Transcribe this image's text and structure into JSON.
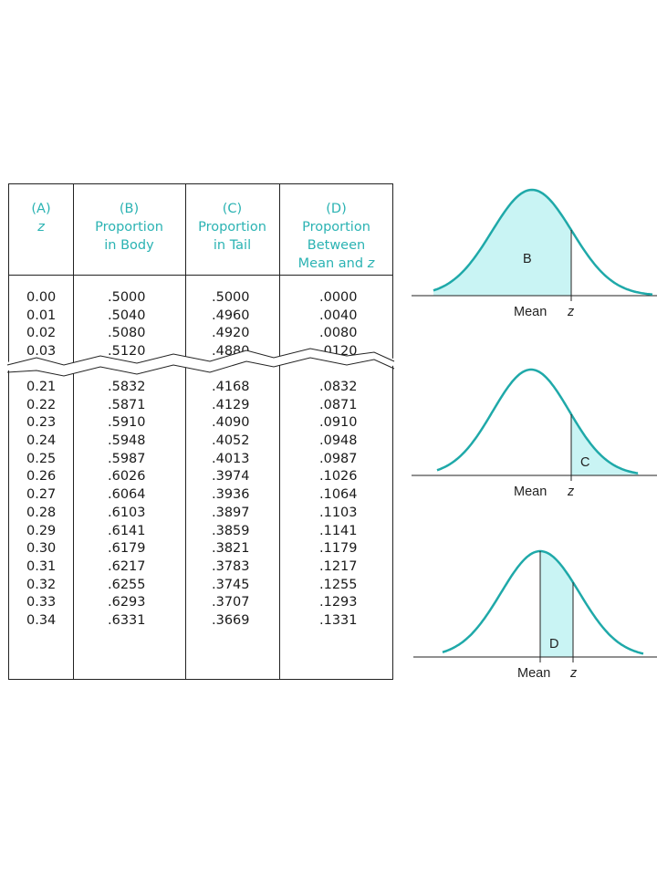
{
  "table": {
    "headers": [
      {
        "letter": "(A)",
        "lines": [
          "z"
        ],
        "italic_last": true
      },
      {
        "letter": "(B)",
        "lines": [
          "Proportion",
          "in Body"
        ]
      },
      {
        "letter": "(C)",
        "lines": [
          "Proportion",
          "in Tail"
        ]
      },
      {
        "letter": "(D)",
        "lines": [
          "Proportion",
          "Between",
          "Mean and "
        ],
        "tail_italic": "z"
      }
    ],
    "top_rows": [
      [
        "0.00",
        ".5000",
        ".5000",
        ".0000"
      ],
      [
        "0.01",
        ".5040",
        ".4960",
        ".0040"
      ],
      [
        "0.02",
        ".5080",
        ".4920",
        ".0080"
      ],
      [
        "0.03",
        ".5120",
        ".4880",
        ".0120"
      ]
    ],
    "bottom_rows": [
      [
        "0.21",
        ".5832",
        ".4168",
        ".0832"
      ],
      [
        "0.22",
        ".5871",
        ".4129",
        ".0871"
      ],
      [
        "0.23",
        ".5910",
        ".4090",
        ".0910"
      ],
      [
        "0.24",
        ".5948",
        ".4052",
        ".0948"
      ],
      [
        "0.25",
        ".5987",
        ".4013",
        ".0987"
      ],
      [
        "0.26",
        ".6026",
        ".3974",
        ".1026"
      ],
      [
        "0.27",
        ".6064",
        ".3936",
        ".1064"
      ],
      [
        "0.28",
        ".6103",
        ".3897",
        ".1103"
      ],
      [
        "0.29",
        ".6141",
        ".3859",
        ".1141"
      ],
      [
        "0.30",
        ".6179",
        ".3821",
        ".1179"
      ],
      [
        "0.31",
        ".6217",
        ".3783",
        ".1217"
      ],
      [
        "0.32",
        ".6255",
        ".3745",
        ".1255"
      ],
      [
        "0.33",
        ".6293",
        ".3707",
        ".1293"
      ],
      [
        "0.34",
        ".6331",
        ".3669",
        ".1331"
      ]
    ]
  },
  "diagrams": [
    {
      "region_label": "B",
      "mean_label": "Mean",
      "z_label": "z"
    },
    {
      "region_label": "C",
      "mean_label": "Mean",
      "z_label": "z"
    },
    {
      "region_label": "D",
      "mean_label": "Mean",
      "z_label": "z"
    }
  ],
  "colors": {
    "curve": "#1fa9a9",
    "fill": "#c9f4f4",
    "header_text": "#2bb3b3",
    "line": "#222222"
  }
}
